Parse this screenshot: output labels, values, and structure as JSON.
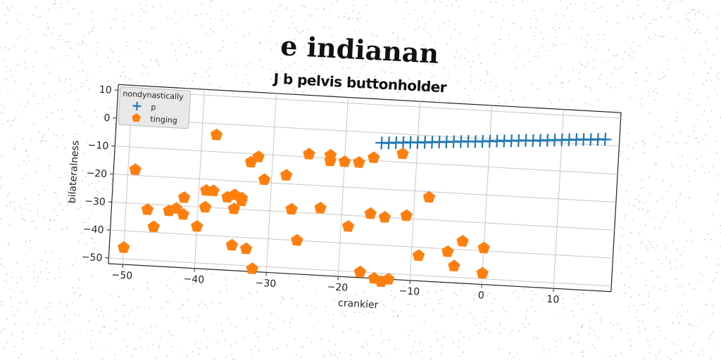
{
  "title": "e indianan",
  "subtitle": "J b pelvis buttonholder",
  "chart_data": {
    "type": "scatter",
    "title": "e indianan",
    "subtitle": "J b pelvis buttonholder",
    "xlabel": "crankier",
    "ylabel": "bilateralness",
    "xlim": [
      -52,
      18
    ],
    "ylim": [
      -52,
      12
    ],
    "xticks": [
      -50,
      -40,
      -30,
      -20,
      -10,
      0,
      10
    ],
    "yticks": [
      -50,
      -40,
      -30,
      -20,
      -10,
      0,
      10
    ],
    "grid": true,
    "legend": {
      "title": "nondynastically",
      "placement": "top-left"
    },
    "series": [
      {
        "name": "p",
        "marker": "plus",
        "color": "#1f77b4",
        "x": [
          -15,
          -14,
          -13,
          -12,
          -11,
          -10,
          -9,
          -8,
          -7,
          -6,
          -5,
          -4,
          -3,
          -2,
          -1,
          0,
          1,
          2,
          3,
          4,
          5,
          6,
          7,
          8,
          9,
          10,
          11,
          12,
          13,
          14,
          15,
          16
        ],
        "y": [
          -3.6,
          -3.4,
          -3.2,
          -3.0,
          -2.8,
          -2.7,
          -2.5,
          -2.3,
          -2.1,
          -1.9,
          -1.7,
          -1.5,
          -1.3,
          -1.2,
          -1.0,
          -0.8,
          -0.6,
          -0.4,
          -0.2,
          0.0,
          0.2,
          0.3,
          0.5,
          0.7,
          0.9,
          1.1,
          1.3,
          1.5,
          1.7,
          1.8,
          2.0,
          2.2
        ]
      },
      {
        "name": "tinging",
        "marker": "pentagon",
        "color": "#ff7f0e",
        "x": [
          -50,
          -49,
          -47,
          -46,
          -44,
          -43,
          -42,
          -42,
          -40,
          -39,
          -39,
          -38,
          -38,
          -36,
          -35,
          -35,
          -35,
          -34,
          -34,
          -33,
          -33,
          -32,
          -32,
          -31,
          -28,
          -27,
          -26,
          -25,
          -23,
          -22,
          -22,
          -20,
          -19,
          -18,
          -17,
          -16,
          -16,
          -15,
          -14,
          -14,
          -13,
          -12,
          -11,
          -9,
          -8,
          -5,
          -4,
          -3,
          0,
          0
        ],
        "y": [
          -46,
          -18,
          -32,
          -38,
          -32,
          -31,
          -33,
          -27,
          -37,
          -30,
          -24,
          -4,
          -24,
          -26,
          -30,
          -43,
          -25,
          -27,
          -26,
          -13,
          -44,
          -11,
          -51,
          -19,
          -17,
          -29,
          -40,
          -9,
          -28,
          -11,
          -9,
          -11,
          -34,
          -11,
          -50,
          -9,
          -29,
          -52,
          -53,
          -30,
          -52,
          -7,
          -29,
          -43,
          -22,
          -41,
          -46,
          -37,
          -39,
          -48
        ]
      }
    ]
  }
}
